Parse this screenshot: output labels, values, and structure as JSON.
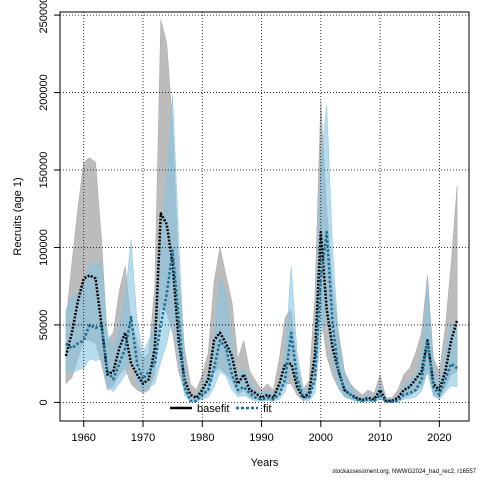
{
  "chart_data": {
    "type": "line",
    "xlabel": "Years",
    "ylabel": "Recruits (age 1)",
    "xlim": [
      1956,
      2025
    ],
    "ylim": [
      -12000,
      252000
    ],
    "x_ticks": [
      1960,
      1970,
      1980,
      1990,
      2000,
      2010,
      2020
    ],
    "y_ticks": [
      0,
      50000,
      100000,
      150000,
      200000,
      250000
    ],
    "grid": true,
    "grid_style": "dotted",
    "legend_position": "bottom-center",
    "colors": {
      "basefit": "#000000",
      "basefit_band": "#a6a6a6",
      "fit": "#1a6e94",
      "fit_band": "#87c5e3"
    },
    "series": [
      {
        "name": "basefit",
        "x": [
          1957,
          1958,
          1959,
          1960,
          1961,
          1962,
          1963,
          1964,
          1965,
          1966,
          1967,
          1968,
          1969,
          1970,
          1971,
          1972,
          1973,
          1974,
          1975,
          1976,
          1977,
          1978,
          1979,
          1980,
          1981,
          1982,
          1983,
          1984,
          1985,
          1986,
          1987,
          1988,
          1989,
          1990,
          1991,
          1992,
          1993,
          1994,
          1995,
          1996,
          1997,
          1998,
          1999,
          2000,
          2001,
          2002,
          2003,
          2004,
          2005,
          2006,
          2007,
          2008,
          2009,
          2010,
          2011,
          2012,
          2013,
          2014,
          2015,
          2016,
          2017,
          2018,
          2019,
          2020,
          2021,
          2022,
          2023
        ],
        "y": [
          30000,
          45000,
          65000,
          80000,
          82000,
          80000,
          50000,
          18000,
          20000,
          35000,
          45000,
          25000,
          18000,
          12000,
          15000,
          35000,
          122000,
          115000,
          90000,
          40000,
          15000,
          5000,
          3000,
          8000,
          15000,
          40000,
          45000,
          38000,
          30000,
          12000,
          18000,
          8000,
          6000,
          3000,
          5000,
          3000,
          12000,
          25000,
          25000,
          10000,
          3000,
          6000,
          30000,
          110000,
          60000,
          35000,
          20000,
          8000,
          5000,
          3000,
          1500,
          3000,
          2000,
          8000,
          1000,
          1000,
          3000,
          8000,
          10000,
          15000,
          20000,
          40000,
          12000,
          8000,
          20000,
          40000,
          53000
        ],
        "lower": [
          12000,
          16000,
          28000,
          40000,
          40000,
          38000,
          25000,
          8000,
          10000,
          18000,
          22000,
          12000,
          8000,
          6000,
          8000,
          18000,
          62000,
          58000,
          45000,
          20000,
          7000,
          1500,
          1000,
          3000,
          7000,
          20000,
          22000,
          18000,
          14000,
          5000,
          8000,
          3000,
          2500,
          1000,
          2000,
          1000,
          5000,
          12000,
          12000,
          4500,
          1000,
          2500,
          14000,
          58000,
          30000,
          17000,
          9000,
          3500,
          2000,
          1000,
          500,
          1000,
          500,
          3000,
          300,
          300,
          1000,
          3000,
          4500,
          7000,
          10000,
          20000,
          5000,
          3000,
          9000,
          18000,
          20000
        ],
        "upper": [
          52000,
          90000,
          125000,
          155000,
          158000,
          155000,
          105000,
          40000,
          45000,
          72000,
          88000,
          52000,
          40000,
          28000,
          32000,
          75000,
          247000,
          232000,
          180000,
          85000,
          35000,
          12000,
          8000,
          18000,
          32000,
          78000,
          100000,
          82000,
          65000,
          28000,
          40000,
          20000,
          14000,
          8000,
          12000,
          8000,
          28000,
          55000,
          60000,
          25000,
          8000,
          14000,
          68000,
          195000,
          125000,
          75000,
          45000,
          20000,
          12000,
          8000,
          5000,
          8000,
          6000,
          18000,
          3000,
          3000,
          8000,
          18000,
          22000,
          32000,
          45000,
          82000,
          28000,
          20000,
          48000,
          90000,
          140000
        ]
      },
      {
        "name": "fit",
        "x": [
          1957,
          1958,
          1959,
          1960,
          1961,
          1962,
          1963,
          1964,
          1965,
          1966,
          1967,
          1968,
          1969,
          1970,
          1971,
          1972,
          1973,
          1974,
          1975,
          1976,
          1977,
          1978,
          1979,
          1980,
          1981,
          1982,
          1983,
          1984,
          1985,
          1986,
          1987,
          1988,
          1989,
          1990,
          1991,
          1992,
          1993,
          1994,
          1995,
          1996,
          1997,
          1998,
          1999,
          2000,
          2001,
          2002,
          2003,
          2004,
          2005,
          2006,
          2007,
          2008,
          2009,
          2010,
          2011,
          2012,
          2013,
          2014,
          2015,
          2016,
          2017,
          2018,
          2019,
          2020,
          2021,
          2022,
          2023
        ],
        "y": [
          38000,
          35000,
          38000,
          40000,
          50000,
          48000,
          50000,
          20000,
          15000,
          25000,
          35000,
          55000,
          25000,
          15000,
          20000,
          25000,
          50000,
          70000,
          98000,
          55000,
          10000,
          1000,
          1000,
          5000,
          8000,
          22000,
          40000,
          35000,
          18000,
          8000,
          10000,
          6000,
          3000,
          2000,
          3000,
          2000,
          5000,
          15000,
          45000,
          15000,
          4000,
          3000,
          15000,
          80000,
          110000,
          50000,
          20000,
          8000,
          5000,
          2000,
          1000,
          2000,
          1000,
          5000,
          500,
          500,
          1000,
          5000,
          6000,
          8000,
          15000,
          40000,
          10000,
          5000,
          15000,
          25000,
          22000
        ],
        "lower": [
          20000,
          19000,
          21000,
          22000,
          28000,
          27000,
          28000,
          10000,
          7000,
          12000,
          18000,
          30000,
          12000,
          7000,
          10000,
          12000,
          26000,
          38000,
          55000,
          28000,
          4500,
          300,
          300,
          2000,
          3500,
          10000,
          20000,
          17000,
          8000,
          3500,
          4500,
          2500,
          1000,
          700,
          1000,
          700,
          2000,
          7000,
          23000,
          7000,
          1500,
          1000,
          6000,
          42000,
          58000,
          25000,
          9000,
          3500,
          2000,
          800,
          300,
          700,
          300,
          2000,
          150,
          150,
          300,
          2000,
          2500,
          3500,
          7000,
          20000,
          4000,
          2000,
          6500,
          11000,
          10000
        ],
        "upper": [
          60000,
          68000,
          70000,
          75000,
          90000,
          88000,
          90000,
          45000,
          35000,
          50000,
          68000,
          105000,
          52000,
          32000,
          40000,
          50000,
          105000,
          145000,
          198000,
          108000,
          25000,
          4000,
          4000,
          12000,
          18000,
          45000,
          80000,
          72000,
          38000,
          18000,
          22000,
          14000,
          8000,
          6000,
          8000,
          6000,
          12000,
          32000,
          88000,
          32000,
          10000,
          8000,
          32000,
          155000,
          192000,
          98000,
          42000,
          18000,
          12000,
          5000,
          3000,
          5000,
          3000,
          12000,
          2000,
          2000,
          3000,
          12000,
          14000,
          18000,
          32000,
          78000,
          22000,
          12000,
          32000,
          52000,
          48000
        ]
      }
    ]
  },
  "footer_text": "stockassessment.org, NWWG2024_had_rec2, r16557"
}
